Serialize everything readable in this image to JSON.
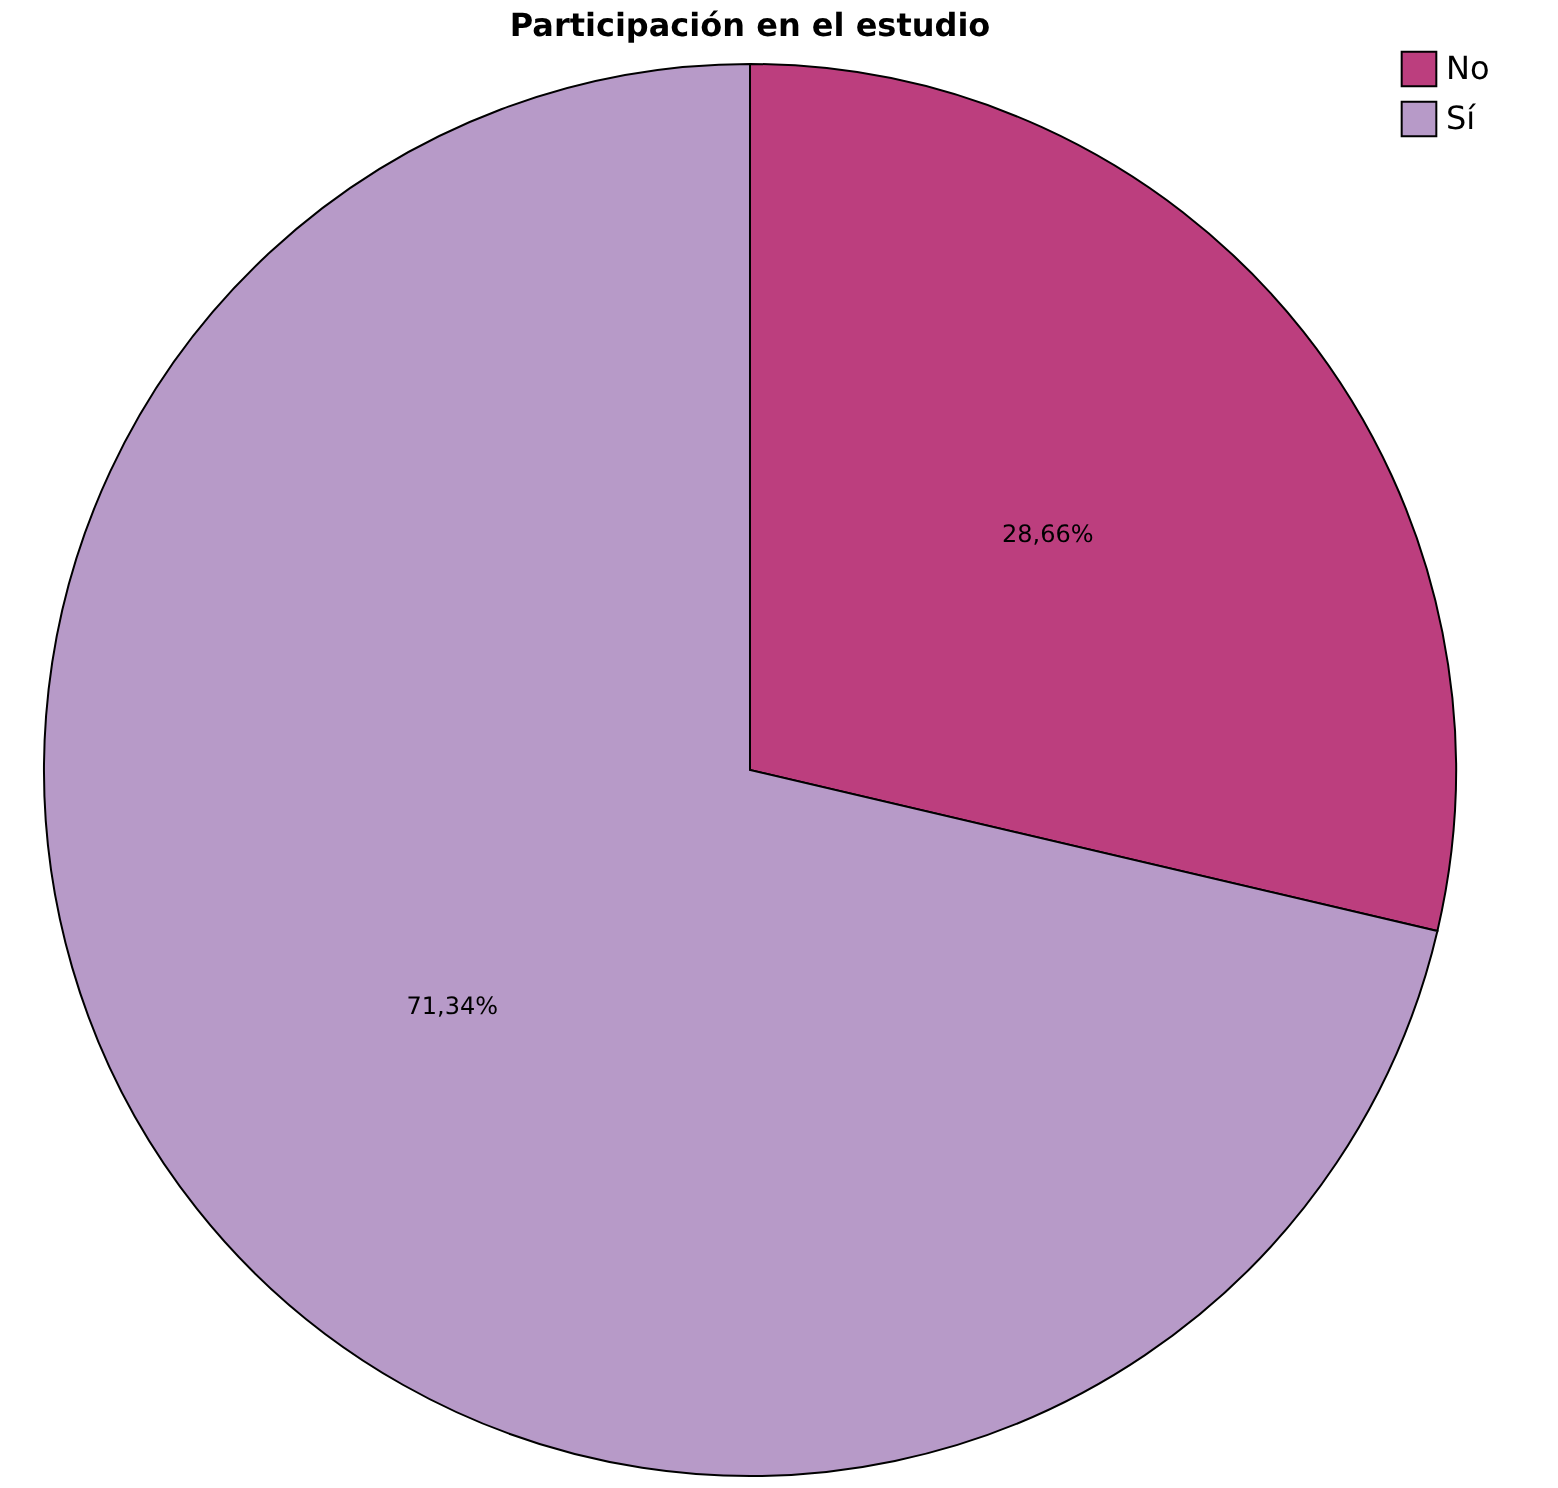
{
  "chart_data": {
    "type": "pie",
    "title": "Participación en el estudio",
    "categories": [
      "No",
      "Sí"
    ],
    "values": [
      28.66,
      71.34
    ],
    "colors": [
      "#bc3e7e",
      "#b79ac8"
    ],
    "value_labels": [
      "28,66%",
      "71,34%"
    ],
    "legend": "top right"
  }
}
